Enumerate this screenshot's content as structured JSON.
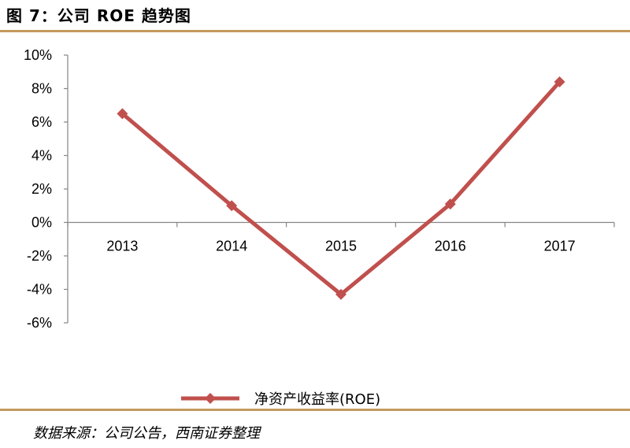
{
  "figure_title": "图 7：公司 ROE 趋势图",
  "source_note": "数据来源：公司公告，西南证券整理",
  "colors": {
    "rule": "#c39a5e",
    "series": "#c0504d",
    "axis": "#868686"
  },
  "chart_data": {
    "type": "line",
    "x": [
      "2013",
      "2014",
      "2015",
      "2016",
      "2017"
    ],
    "series": [
      {
        "name": "净资产收益率(ROE)",
        "values": [
          6.5,
          1.0,
          -4.3,
          1.1,
          8.4
        ],
        "marker": "diamond"
      }
    ],
    "ylim": [
      -6,
      10
    ],
    "yticks": [
      "10%",
      "8%",
      "6%",
      "4%",
      "2%",
      "0%",
      "-2%",
      "-4%",
      "-6%"
    ],
    "ytick_values": [
      10,
      8,
      6,
      4,
      2,
      0,
      -2,
      -4,
      -6
    ],
    "grid": false,
    "legend": "bottom-center",
    "xlabel": "",
    "ylabel": ""
  }
}
